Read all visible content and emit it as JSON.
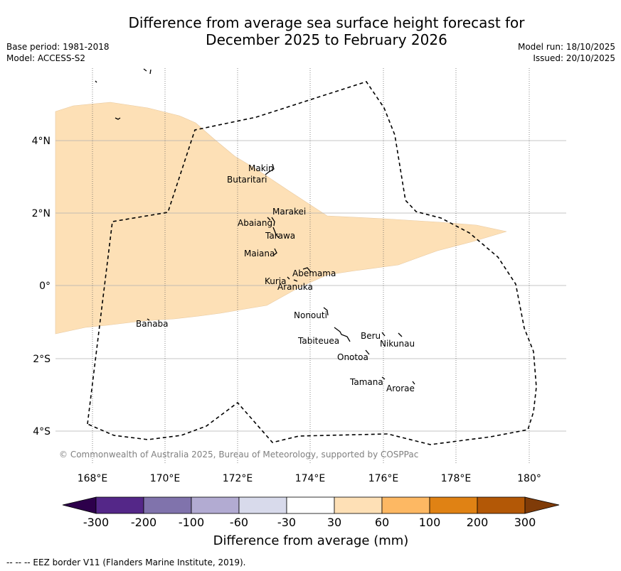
{
  "title": {
    "line1": "Difference from average sea surface height forecast for",
    "line2": "December 2025 to February 2026"
  },
  "meta_left": {
    "base_period": "Base period: 1981-2018",
    "model": "Model: ACCESS-S2"
  },
  "meta_right": {
    "model_run": "Model run: 18/10/2025",
    "issued": "Issued: 20/10/2025"
  },
  "map": {
    "lon_range": [
      167,
      181
    ],
    "lat_range": [
      -5,
      6
    ],
    "lon_ticks": [
      "168°E",
      "170°E",
      "172°E",
      "174°E",
      "176°E",
      "178°E",
      "180°"
    ],
    "lat_ticks": [
      "4°N",
      "2°N",
      "0°",
      "2°S",
      "4°S"
    ],
    "copyright": "© Commonwealth of Australia 2025, Bureau of Meteorology, supported by COSPPac",
    "anomaly_color": "#fde0b6",
    "islands": [
      "Makin",
      "Butaritari",
      "Marakei",
      "Abaiang",
      "Tarawa",
      "Maiana",
      "Abemama",
      "Kuria",
      "Aranuka",
      "Nonouti",
      "Banaba",
      "Beru",
      "Nikunau",
      "Tabiteuea",
      "Onotoa",
      "Tamana",
      "Arorae"
    ]
  },
  "colorbar": {
    "label": "Difference from average (mm)",
    "ticks": [
      "-300",
      "-200",
      "-100",
      "-60",
      "-30",
      "30",
      "60",
      "100",
      "200",
      "300"
    ],
    "colors": [
      "#2d004b",
      "#542788",
      "#8073ac",
      "#b2abd2",
      "#d8daeb",
      "#ffffff",
      "#fee0b6",
      "#fdb863",
      "#e08214",
      "#b35806",
      "#7f3b08"
    ]
  },
  "footer": "--  --  -- EEZ border V11 (Flanders Marine Institute, 2019)."
}
